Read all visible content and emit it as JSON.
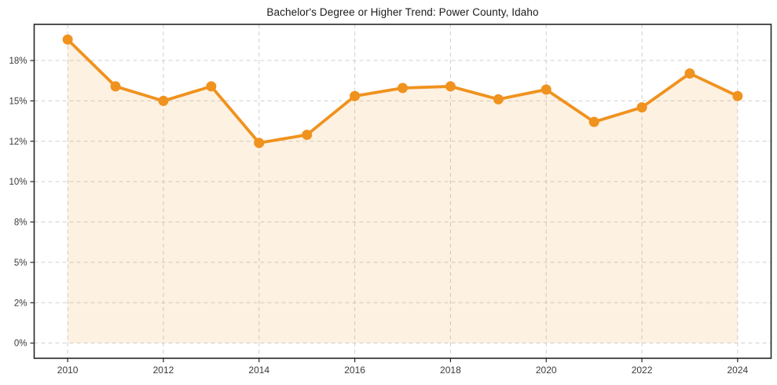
{
  "chart_data": {
    "type": "line",
    "title": "Bachelor's Degree or Higher Trend: Power County, Idaho",
    "xlabel": "",
    "ylabel": "",
    "x": [
      2010,
      2011,
      2012,
      2013,
      2014,
      2015,
      2016,
      2017,
      2018,
      2019,
      2020,
      2021,
      2022,
      2023,
      2024
    ],
    "series": [
      {
        "name": "Bachelor's degree or higher (%)",
        "values": [
          18.8,
          15.9,
          15.0,
          15.9,
          12.4,
          12.9,
          15.3,
          15.8,
          15.9,
          15.1,
          15.7,
          13.7,
          14.6,
          16.7,
          15.3
        ]
      }
    ],
    "xlim": [
      2009.3,
      2024.7
    ],
    "ylim": [
      -0.94,
      19.74
    ],
    "x_ticks": {
      "values": [
        2010,
        2012,
        2014,
        2016,
        2018,
        2020,
        2022,
        2024
      ],
      "labels": [
        "2010",
        "2012",
        "2014",
        "2016",
        "2018",
        "2020",
        "2022",
        "2024"
      ]
    },
    "y_ticks": {
      "values": [
        0,
        2.5,
        5,
        7.5,
        10,
        12.5,
        15,
        17.5
      ],
      "labels": [
        "0%",
        "2%",
        "5%",
        "8%",
        "10%",
        "12%",
        "15%",
        "18%"
      ]
    },
    "grid": true,
    "legend_position": "none",
    "area_fill_to": 0,
    "colors": {
      "line": "#F0921E",
      "marker": "#F0921E",
      "area_fill": "#F0921E",
      "area_fill_opacity": 0.13,
      "grid": "#cfcfcf",
      "spine": "#262626",
      "tick_label": "#3a3a3a",
      "title": "#1b1b1b",
      "background": "#ffffff"
    },
    "marker_radius": 6.5,
    "line_width": 3.8
  }
}
